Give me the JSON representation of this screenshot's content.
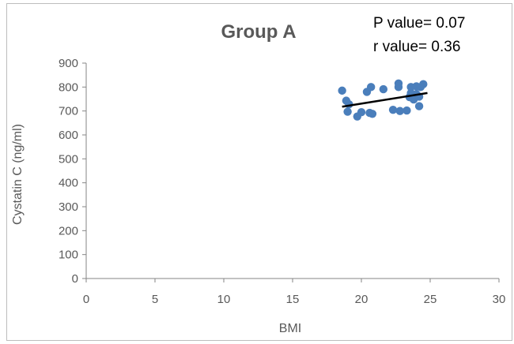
{
  "chart_data": {
    "type": "scatter",
    "title": "Group A",
    "annotations": [
      "P value= 0.07",
      "r value= 0.36"
    ],
    "xlabel": "BMI",
    "ylabel": "Cystatin C (ng/ml)",
    "xlim": [
      0,
      30
    ],
    "ylim": [
      0,
      900
    ],
    "xticks": [
      "0",
      "5",
      "10",
      "15",
      "20",
      "25",
      "30"
    ],
    "yticks": [
      "0",
      "100",
      "200",
      "300",
      "400",
      "500",
      "600",
      "700",
      "800",
      "900"
    ],
    "grid": false,
    "legend": "none",
    "marker_color": "#4a7ebb",
    "trendline_color": "#000000",
    "points": [
      {
        "x": 18.6,
        "y": 785
      },
      {
        "x": 18.9,
        "y": 743
      },
      {
        "x": 19.1,
        "y": 728
      },
      {
        "x": 19.0,
        "y": 697
      },
      {
        "x": 19.7,
        "y": 677
      },
      {
        "x": 20.0,
        "y": 695
      },
      {
        "x": 20.6,
        "y": 692
      },
      {
        "x": 20.8,
        "y": 688
      },
      {
        "x": 20.4,
        "y": 780
      },
      {
        "x": 20.7,
        "y": 800
      },
      {
        "x": 21.6,
        "y": 791
      },
      {
        "x": 22.3,
        "y": 705
      },
      {
        "x": 22.8,
        "y": 700
      },
      {
        "x": 22.7,
        "y": 800
      },
      {
        "x": 22.7,
        "y": 815
      },
      {
        "x": 23.3,
        "y": 702
      },
      {
        "x": 23.5,
        "y": 758
      },
      {
        "x": 23.6,
        "y": 775
      },
      {
        "x": 23.6,
        "y": 800
      },
      {
        "x": 23.8,
        "y": 748
      },
      {
        "x": 24.0,
        "y": 803
      },
      {
        "x": 24.0,
        "y": 770
      },
      {
        "x": 24.2,
        "y": 720
      },
      {
        "x": 24.2,
        "y": 760
      },
      {
        "x": 24.5,
        "y": 812
      },
      {
        "x": 24.3,
        "y": 800
      }
    ],
    "trendline": {
      "x": [
        18.6,
        24.8
      ],
      "y": [
        718,
        775
      ]
    }
  }
}
